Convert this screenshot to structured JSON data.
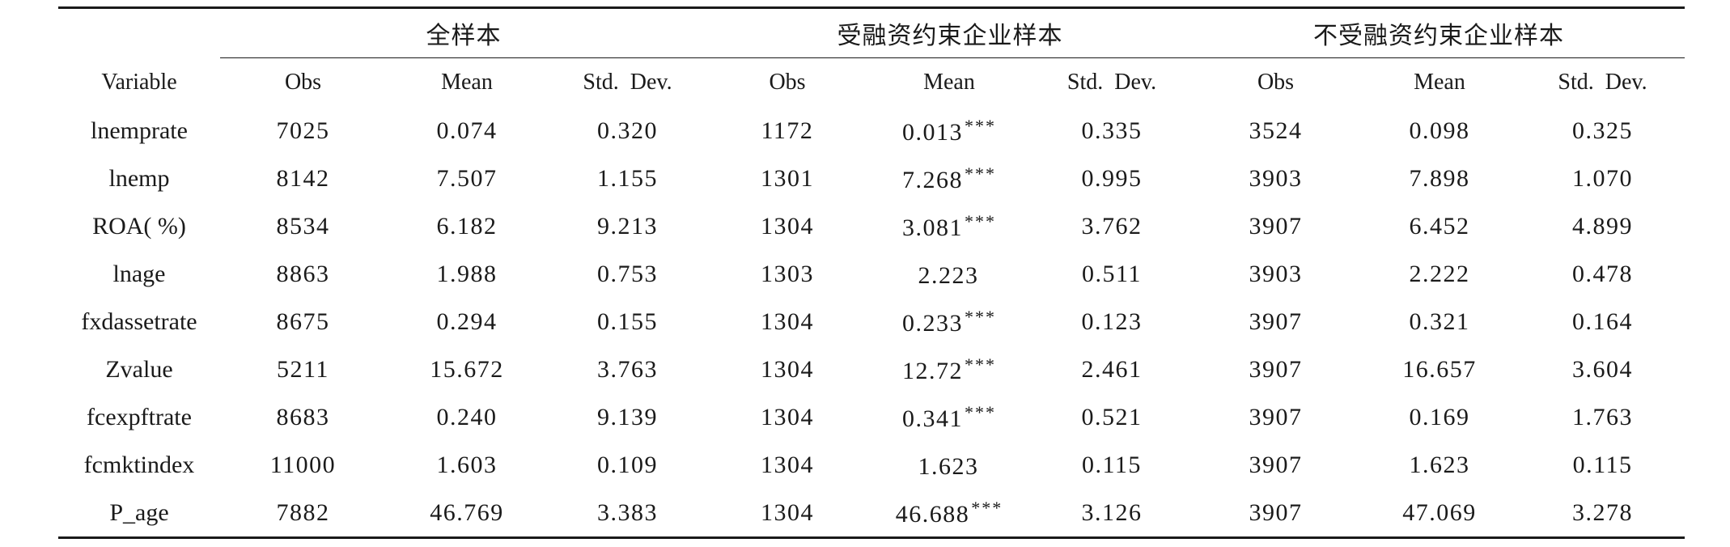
{
  "groups": {
    "full": "全样本",
    "constrained": "受融资约束企业样本",
    "unconstrained": "不受融资约束企业样本"
  },
  "columns": {
    "variable": "Variable",
    "obs": "Obs",
    "mean": "Mean",
    "std": "Std.  Dev."
  },
  "rows": [
    {
      "var": "lnemprate",
      "f_obs": "7025",
      "f_mean": "0.074",
      "f_std": "0.320",
      "c_obs": "1172",
      "c_mean": "0.013",
      "c_sig": "***",
      "c_std": "0.335",
      "u_obs": "3524",
      "u_mean": "0.098",
      "u_std": "0.325"
    },
    {
      "var": "lnemp",
      "f_obs": "8142",
      "f_mean": "7.507",
      "f_std": "1.155",
      "c_obs": "1301",
      "c_mean": "7.268",
      "c_sig": "***",
      "c_std": "0.995",
      "u_obs": "3903",
      "u_mean": "7.898",
      "u_std": "1.070"
    },
    {
      "var": "ROA( %)",
      "f_obs": "8534",
      "f_mean": "6.182",
      "f_std": "9.213",
      "c_obs": "1304",
      "c_mean": "3.081",
      "c_sig": "***",
      "c_std": "3.762",
      "u_obs": "3907",
      "u_mean": "6.452",
      "u_std": "4.899"
    },
    {
      "var": "lnage",
      "f_obs": "8863",
      "f_mean": "1.988",
      "f_std": "0.753",
      "c_obs": "1303",
      "c_mean": "2.223",
      "c_sig": "",
      "c_std": "0.511",
      "u_obs": "3903",
      "u_mean": "2.222",
      "u_std": "0.478"
    },
    {
      "var": "fxdassetrate",
      "f_obs": "8675",
      "f_mean": "0.294",
      "f_std": "0.155",
      "c_obs": "1304",
      "c_mean": "0.233",
      "c_sig": "***",
      "c_std": "0.123",
      "u_obs": "3907",
      "u_mean": "0.321",
      "u_std": "0.164"
    },
    {
      "var": "Zvalue",
      "f_obs": "5211",
      "f_mean": "15.672",
      "f_std": "3.763",
      "c_obs": "1304",
      "c_mean": "12.72",
      "c_sig": "***",
      "c_std": "2.461",
      "u_obs": "3907",
      "u_mean": "16.657",
      "u_std": "3.604"
    },
    {
      "var": "fcexpftrate",
      "f_obs": "8683",
      "f_mean": "0.240",
      "f_std": "9.139",
      "c_obs": "1304",
      "c_mean": "0.341",
      "c_sig": "***",
      "c_std": "0.521",
      "u_obs": "3907",
      "u_mean": "0.169",
      "u_std": "1.763"
    },
    {
      "var": "fcmktindex",
      "f_obs": "11000",
      "f_mean": "1.603",
      "f_std": "0.109",
      "c_obs": "1304",
      "c_mean": "1.623",
      "c_sig": "",
      "c_std": "0.115",
      "u_obs": "3907",
      "u_mean": "1.623",
      "u_std": "0.115"
    },
    {
      "var": "P_age",
      "f_obs": "7882",
      "f_mean": "46.769",
      "f_std": "3.383",
      "c_obs": "1304",
      "c_mean": "46.688",
      "c_sig": "***",
      "c_std": "3.126",
      "u_obs": "3907",
      "u_mean": "47.069",
      "u_std": "3.278"
    }
  ]
}
